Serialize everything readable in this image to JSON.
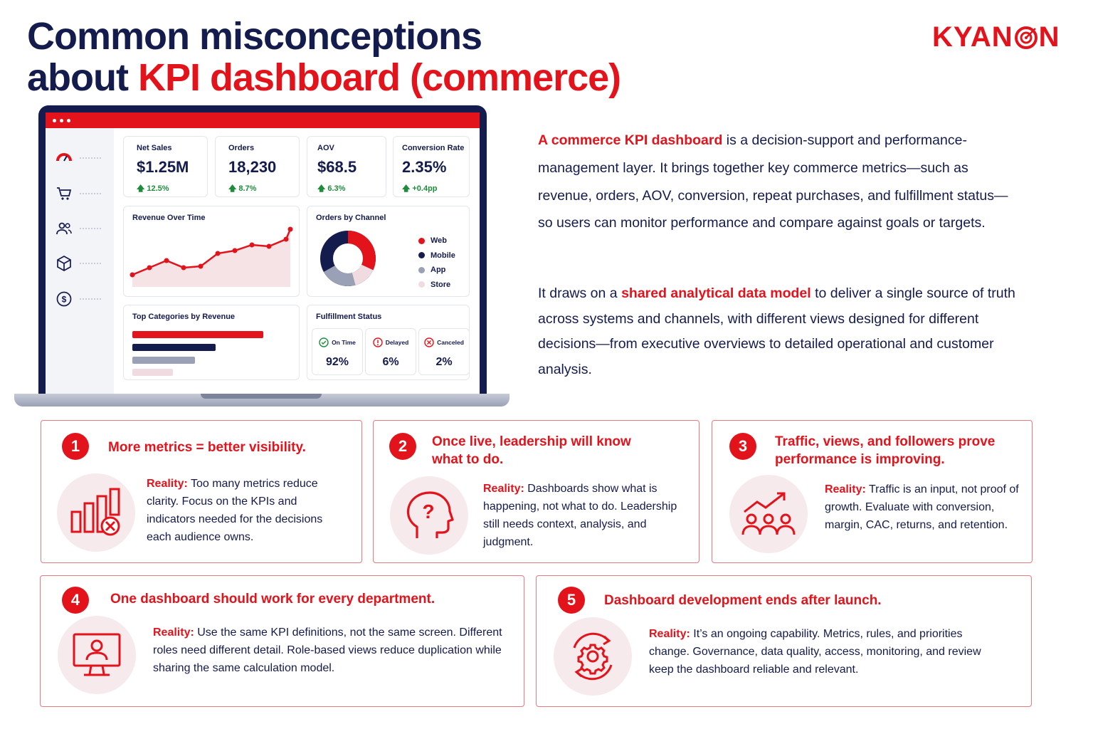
{
  "header": {
    "title_line1": "Common misconceptions",
    "title_line2_prefix": "about ",
    "title_line2_highlight": "KPI dashboard (commerce)",
    "logo_pre": "KYAN",
    "logo_post": "N"
  },
  "dashboard": {
    "kpis": [
      {
        "label": "Net Sales",
        "value": "$1.25M",
        "delta": "12.5%"
      },
      {
        "label": "Orders",
        "value": "18,230",
        "delta": "8.7%"
      },
      {
        "label": "AOV",
        "value": "$68.5",
        "delta": "6.3%"
      },
      {
        "label": "Conversion Rate",
        "value": "2.35%",
        "delta": "+0.4pp"
      }
    ],
    "revenue_title": "Revenue Over Time",
    "channel_title": "Orders by Channel",
    "channel_legend": [
      "Web",
      "Mobile",
      "App",
      "Store"
    ],
    "categories_title": "Top Categories by Revenue",
    "fulfillment_title": "Fulfillment Status",
    "fulfillment": [
      {
        "label": "On Time",
        "value": "92%"
      },
      {
        "label": "Delayed",
        "value": "6%"
      },
      {
        "label": "Canceled",
        "value": "2%"
      }
    ]
  },
  "description": {
    "p1_highlight": "A commerce KPI dashboard",
    "p1_rest": " is a decision-support and performance-management layer. It brings together key commerce metrics—such as revenue, orders, AOV, conversion, repeat purchases, and fulfillment status—so users can monitor performance and compare against goals or targets.",
    "p2_pre": "It draws on a ",
    "p2_highlight": "shared analytical data model",
    "p2_rest": " to deliver a single source of truth across systems and channels, with different views designed for different decisions—from executive overviews to detailed operational and customer analysis."
  },
  "misconceptions": [
    {
      "num": "1",
      "title": "More metrics = better visibility.",
      "reality_label": "Reality:",
      "reality": " Too many metrics reduce clarity. Focus on the KPIs and indicators needed for the decisions each audience owns."
    },
    {
      "num": "2",
      "title": "Once live, leadership will know what to do.",
      "reality_label": "Reality:",
      "reality": " Dashboards show what is happening, not what to do. Leadership still needs context, analysis, and judgment."
    },
    {
      "num": "3",
      "title": "Traffic, views, and followers prove performance is improving.",
      "reality_label": "Reality:",
      "reality": " Traffic is an input, not proof of growth. Evaluate with conversion, margin, CAC, returns, and retention."
    },
    {
      "num": "4",
      "title": "One dashboard should work for every department.",
      "reality_label": "Reality:",
      "reality": " Use the same KPI definitions, not the same screen. Different roles need different detail. Role-based views reduce duplication while sharing the same calculation model."
    },
    {
      "num": "5",
      "title": "Dashboard development ends after launch.",
      "reality_label": "Reality:",
      "reality": " It’s an ongoing capability. Metrics, rules, and priorities change. Governance, data quality, access, monitoring, and review keep the dashboard reliable and relevant."
    }
  ],
  "colors": {
    "accent": "#e3131b",
    "navy": "#141b4d",
    "green": "#1e8c3a"
  }
}
